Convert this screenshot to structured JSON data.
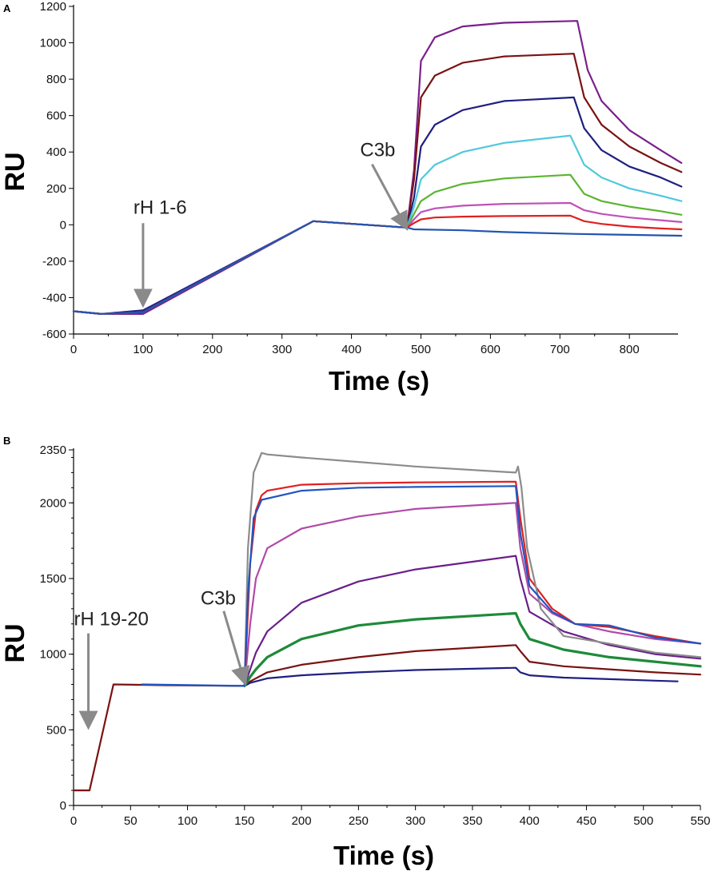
{
  "figure": {
    "panel_labels": [
      "A",
      "B"
    ]
  },
  "chart_data": [
    {
      "type": "line",
      "panel": "A",
      "xlabel": "Time (s)",
      "ylabel": "RU",
      "xlim": [
        0,
        870
      ],
      "ylim": [
        -600,
        1200
      ],
      "x_ticks": [
        0,
        100,
        200,
        300,
        400,
        500,
        600,
        700,
        800
      ],
      "y_ticks": [
        -600,
        -400,
        -200,
        0,
        200,
        400,
        600,
        800,
        1000,
        1200
      ],
      "x_tick_labels": [
        "0",
        "100",
        "200",
        "300",
        "400",
        "500",
        "600",
        "700",
        "800"
      ],
      "y_tick_labels": [
        "-600",
        "-400",
        "-200",
        "0",
        "200",
        "400",
        "600",
        "800",
        "1000",
        "1200"
      ],
      "annotations": [
        {
          "text": "rH 1-6",
          "x": 100,
          "y": -430
        },
        {
          "text": "C3b",
          "x": 478,
          "y": -10
        }
      ],
      "series": [
        {
          "name": "purple",
          "color": "#7b1f8c",
          "x": [
            0,
            40,
            100,
            345,
            480,
            490,
            500,
            520,
            560,
            620,
            725,
            740,
            760,
            800,
            845,
            875
          ],
          "y": [
            -475,
            -490,
            -490,
            20,
            -15,
            300,
            900,
            1030,
            1090,
            1110,
            1120,
            850,
            680,
            520,
            410,
            340
          ]
        },
        {
          "name": "darkred",
          "color": "#7a1212",
          "x": [
            0,
            40,
            100,
            345,
            480,
            490,
            500,
            520,
            560,
            620,
            720,
            735,
            760,
            800,
            845,
            875
          ],
          "y": [
            -475,
            -490,
            -480,
            20,
            -15,
            250,
            700,
            820,
            890,
            925,
            940,
            700,
            550,
            430,
            340,
            290
          ]
        },
        {
          "name": "navy",
          "color": "#1f1f80",
          "x": [
            0,
            40,
            100,
            345,
            480,
            490,
            500,
            520,
            560,
            620,
            720,
            735,
            760,
            800,
            845,
            875
          ],
          "y": [
            -475,
            -490,
            -470,
            20,
            -15,
            150,
            430,
            550,
            630,
            680,
            700,
            530,
            410,
            320,
            260,
            210
          ]
        },
        {
          "name": "cyan",
          "color": "#4fc8dc",
          "x": [
            0,
            40,
            100,
            345,
            480,
            490,
            500,
            520,
            560,
            620,
            715,
            735,
            760,
            800,
            845,
            875
          ],
          "y": [
            -475,
            -490,
            -480,
            20,
            -15,
            100,
            250,
            330,
            400,
            450,
            490,
            330,
            260,
            200,
            160,
            130
          ]
        },
        {
          "name": "green",
          "color": "#5bb530",
          "x": [
            0,
            40,
            100,
            345,
            480,
            490,
            500,
            520,
            560,
            620,
            715,
            735,
            760,
            800,
            845,
            875
          ],
          "y": [
            -475,
            -490,
            -480,
            20,
            -15,
            60,
            130,
            180,
            225,
            255,
            275,
            170,
            130,
            100,
            75,
            55
          ]
        },
        {
          "name": "magenta",
          "color": "#c050b8",
          "x": [
            0,
            40,
            100,
            345,
            480,
            490,
            500,
            520,
            560,
            620,
            715,
            735,
            760,
            800,
            845,
            875
          ],
          "y": [
            -475,
            -490,
            -480,
            20,
            -15,
            30,
            70,
            90,
            105,
            115,
            120,
            80,
            60,
            40,
            25,
            15
          ]
        },
        {
          "name": "red",
          "color": "#e02020",
          "x": [
            0,
            40,
            100,
            345,
            480,
            490,
            500,
            520,
            560,
            620,
            715,
            735,
            760,
            800,
            845,
            875
          ],
          "y": [
            -475,
            -490,
            -480,
            20,
            -15,
            10,
            30,
            40,
            45,
            48,
            50,
            20,
            5,
            -10,
            -20,
            -25
          ]
        },
        {
          "name": "blue",
          "color": "#2255b0",
          "x": [
            0,
            40,
            100,
            345,
            480,
            490,
            560,
            620,
            720,
            800,
            875
          ],
          "y": [
            -475,
            -490,
            -480,
            20,
            -15,
            -25,
            -30,
            -40,
            -50,
            -55,
            -60
          ]
        }
      ]
    },
    {
      "type": "line",
      "panel": "B",
      "xlabel": "Time (s)",
      "ylabel": "RU",
      "xlim": [
        0,
        550
      ],
      "ylim": [
        0,
        2350
      ],
      "x_ticks": [
        0,
        50,
        100,
        150,
        200,
        250,
        300,
        350,
        400,
        450,
        500,
        550
      ],
      "y_ticks": [
        0,
        500,
        1000,
        1500,
        2000,
        2350
      ],
      "x_tick_labels": [
        "0",
        "50",
        "100",
        "150",
        "200",
        "250",
        "300",
        "350",
        "400",
        "450",
        "500",
        "550"
      ],
      "y_tick_labels": [
        "0",
        "500",
        "1000",
        "1500",
        "2000",
        "2350"
      ],
      "annotations": [
        {
          "text": "rH 19-20",
          "x": 13,
          "y": 530
        },
        {
          "text": "C3b",
          "x": 150,
          "y": 820
        }
      ],
      "series": [
        {
          "name": "darkred",
          "color": "#7a1212",
          "x": [
            0,
            14,
            35,
            80,
            150,
            155,
            170,
            200,
            250,
            300,
            388,
            392,
            400,
            430,
            470,
            510,
            550
          ],
          "y": [
            100,
            100,
            800,
            795,
            790,
            820,
            880,
            930,
            980,
            1020,
            1060,
            1020,
            950,
            920,
            900,
            880,
            865
          ]
        },
        {
          "name": "navy",
          "color": "#1f1f80",
          "x": [
            150,
            155,
            170,
            200,
            250,
            300,
            388,
            392,
            400,
            430,
            470,
            510,
            530
          ],
          "y": [
            790,
            810,
            840,
            860,
            880,
            895,
            910,
            880,
            860,
            845,
            835,
            825,
            820
          ]
        },
        {
          "name": "green",
          "color": "#1e8a3a",
          "x": [
            150,
            155,
            160,
            170,
            200,
            250,
            300,
            388,
            392,
            400,
            430,
            470,
            510,
            550
          ],
          "y": [
            790,
            850,
            900,
            980,
            1100,
            1190,
            1230,
            1270,
            1200,
            1100,
            1030,
            980,
            950,
            920
          ]
        },
        {
          "name": "purple",
          "color": "#6a1f8a",
          "x": [
            150,
            155,
            160,
            170,
            200,
            250,
            300,
            388,
            392,
            400,
            430,
            470,
            510,
            550
          ],
          "y": [
            790,
            900,
            1010,
            1150,
            1340,
            1480,
            1560,
            1650,
            1500,
            1280,
            1150,
            1060,
            1000,
            970
          ]
        },
        {
          "name": "magenta",
          "color": "#b04aa8",
          "x": [
            150,
            155,
            160,
            170,
            200,
            250,
            300,
            388,
            392,
            400,
            420,
            440,
            470,
            510,
            550
          ],
          "y": [
            790,
            1200,
            1500,
            1700,
            1830,
            1910,
            1960,
            2000,
            1700,
            1400,
            1270,
            1200,
            1150,
            1100,
            1070
          ]
        },
        {
          "name": "red",
          "color": "#e02020",
          "x": [
            150,
            155,
            160,
            165,
            170,
            200,
            250,
            300,
            388,
            392,
            400,
            420,
            440,
            470,
            510,
            550
          ],
          "y": [
            790,
            1600,
            1950,
            2050,
            2080,
            2120,
            2130,
            2135,
            2140,
            1900,
            1500,
            1300,
            1200,
            1180,
            1120,
            1070
          ]
        },
        {
          "name": "gray",
          "color": "#8c8c8c",
          "x": [
            150,
            153,
            158,
            165,
            170,
            200,
            250,
            300,
            388,
            390,
            393,
            398,
            410,
            430,
            470,
            510,
            550
          ],
          "y": [
            790,
            1700,
            2200,
            2330,
            2320,
            2300,
            2270,
            2240,
            2200,
            2240,
            2100,
            1700,
            1300,
            1120,
            1070,
            1010,
            980
          ]
        },
        {
          "name": "blue",
          "color": "#2255c0",
          "x": [
            60,
            150,
            153,
            158,
            165,
            200,
            250,
            300,
            385,
            388,
            392,
            400,
            420,
            440,
            470,
            510,
            550
          ],
          "y": [
            800,
            790,
            1400,
            1900,
            2020,
            2080,
            2100,
            2105,
            2110,
            2110,
            1800,
            1450,
            1280,
            1200,
            1190,
            1110,
            1070
          ]
        }
      ]
    }
  ]
}
